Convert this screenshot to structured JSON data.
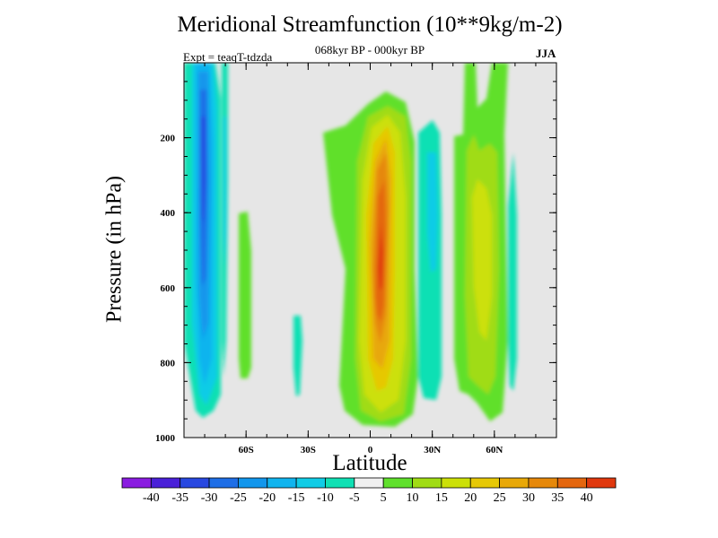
{
  "chart_data": {
    "type": "heatmap",
    "title": "Meridional Streamfunction (10**9kg/m-2)",
    "subtitle": "068kyr BP - 000kyr BP",
    "expt_label": "Expt = teaqT-tdzda",
    "season": "JJA",
    "xlabel": "Latitude",
    "ylabel": "Pressure (in hPa)",
    "xlim": [
      -90,
      90
    ],
    "ylim": [
      1000,
      0
    ],
    "x_ticks": [
      {
        "value": -60,
        "label": "60S"
      },
      {
        "value": -30,
        "label": "30S"
      },
      {
        "value": 0,
        "label": "0"
      },
      {
        "value": 30,
        "label": "30N"
      },
      {
        "value": 60,
        "label": "60N"
      }
    ],
    "y_ticks": [
      {
        "value": 200,
        "label": "200"
      },
      {
        "value": 400,
        "label": "400"
      },
      {
        "value": 600,
        "label": "600"
      },
      {
        "value": 800,
        "label": "800"
      },
      {
        "value": 1000,
        "label": "1000"
      }
    ],
    "colorbar": {
      "labels": [
        "-40",
        "-35",
        "-30",
        "-25",
        "-20",
        "-15",
        "-10",
        "-5",
        "5",
        "10",
        "15",
        "20",
        "25",
        "30",
        "35",
        "40"
      ],
      "colors": [
        "#8a1ce0",
        "#4a20d8",
        "#2848e0",
        "#1e6ee6",
        "#1296ec",
        "#10b4ee",
        "#10cce6",
        "#10e0b4",
        "#f0f0f0",
        "#60e02c",
        "#a0dc14",
        "#cce008",
        "#e6c806",
        "#e8a808",
        "#e6880a",
        "#e4660e",
        "#e0380e"
      ]
    },
    "background_color": "#e6e6e6",
    "features": [
      {
        "name": "sh-high-lat-negative-column",
        "lat_range": [
          -88,
          -78
        ],
        "pressure_range": [
          20,
          950
        ],
        "min_value": -30
      },
      {
        "name": "sh-negative-column-2",
        "lat_range": [
          -78,
          -73
        ],
        "pressure_range": [
          20,
          900
        ],
        "min_value": -10
      },
      {
        "name": "sh-mid-lat-positive",
        "lat_range": [
          -64,
          -58
        ],
        "pressure_range": [
          400,
          840
        ],
        "max_value": 10
      },
      {
        "name": "sh-small-negative",
        "lat_range": [
          -37,
          -33
        ],
        "pressure_range": [
          650,
          890
        ],
        "min_value": -10
      },
      {
        "name": "tropical-positive-cell",
        "lat_range": [
          -22,
          22
        ],
        "pressure_range": [
          150,
          970
        ],
        "max_value": 40
      },
      {
        "name": "nh-negative-column",
        "lat_range": [
          28,
          34
        ],
        "pressure_range": [
          170,
          860
        ],
        "min_value": -10
      },
      {
        "name": "nh-positive-column",
        "lat_range": [
          42,
          62
        ],
        "pressure_range": [
          20,
          960
        ],
        "max_value": 15
      },
      {
        "name": "nh-high-lat-negative",
        "lat_range": [
          67,
          71
        ],
        "pressure_range": [
          250,
          880
        ],
        "min_value": -10
      }
    ]
  }
}
